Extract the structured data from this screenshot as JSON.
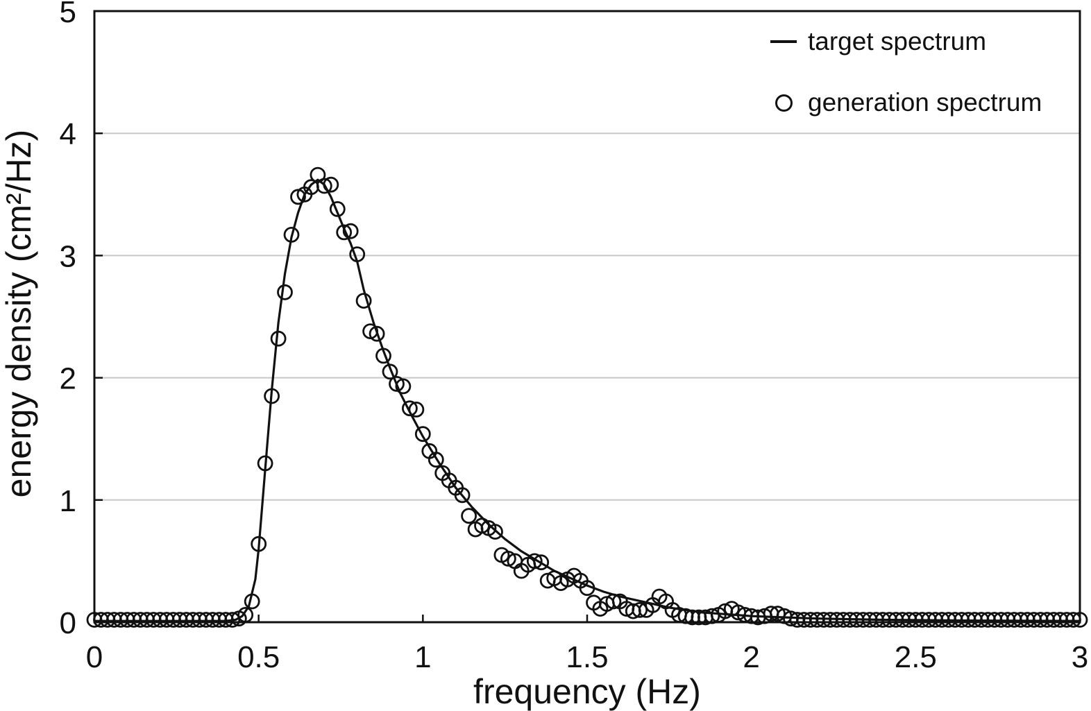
{
  "figure": {
    "background": "#ffffff"
  },
  "chart_data": {
    "type": "line",
    "title": "",
    "xlabel": "frequency (Hz)",
    "ylabel": "energy density (cm²/Hz)",
    "xlim": [
      0,
      3
    ],
    "ylim": [
      0,
      5
    ],
    "xticks": {
      "values": [
        0,
        0.5,
        1,
        1.5,
        2,
        2.5,
        3
      ],
      "labels": [
        "0",
        "0.5",
        "1",
        "1.5",
        "2",
        "2.5",
        "3"
      ]
    },
    "yticks": {
      "values": [
        0,
        1,
        2,
        3,
        4,
        5
      ],
      "labels": [
        "0",
        "1",
        "2",
        "3",
        "4",
        "5"
      ]
    },
    "grid": {
      "horizontal_at": [
        1,
        2,
        3,
        4
      ],
      "vertical": false,
      "color": "#c8c8c8"
    },
    "colors": {
      "axis": "#111111",
      "series": "#111111",
      "text": "#111111"
    },
    "legend": [
      {
        "label": "target spectrum",
        "marker": "line"
      },
      {
        "label": "generation spectrum",
        "marker": "open-circle"
      }
    ],
    "series": [
      {
        "name": "target spectrum",
        "style": "line",
        "points": [
          [
            0.0,
            0.01
          ],
          [
            0.3,
            0.01
          ],
          [
            0.4,
            0.01
          ],
          [
            0.43,
            0.02
          ],
          [
            0.45,
            0.05
          ],
          [
            0.47,
            0.13
          ],
          [
            0.49,
            0.35
          ],
          [
            0.5,
            0.6
          ],
          [
            0.52,
            1.25
          ],
          [
            0.54,
            1.9
          ],
          [
            0.56,
            2.45
          ],
          [
            0.58,
            2.85
          ],
          [
            0.6,
            3.15
          ],
          [
            0.62,
            3.35
          ],
          [
            0.64,
            3.5
          ],
          [
            0.66,
            3.58
          ],
          [
            0.68,
            3.62
          ],
          [
            0.7,
            3.58
          ],
          [
            0.72,
            3.48
          ],
          [
            0.74,
            3.35
          ],
          [
            0.76,
            3.22
          ],
          [
            0.78,
            3.1
          ],
          [
            0.8,
            2.95
          ],
          [
            0.82,
            2.72
          ],
          [
            0.85,
            2.45
          ],
          [
            0.88,
            2.22
          ],
          [
            0.9,
            2.08
          ],
          [
            0.93,
            1.88
          ],
          [
            0.96,
            1.72
          ],
          [
            1.0,
            1.52
          ],
          [
            1.05,
            1.3
          ],
          [
            1.1,
            1.1
          ],
          [
            1.15,
            0.94
          ],
          [
            1.2,
            0.8
          ],
          [
            1.25,
            0.68
          ],
          [
            1.3,
            0.58
          ],
          [
            1.35,
            0.5
          ],
          [
            1.4,
            0.42
          ],
          [
            1.45,
            0.36
          ],
          [
            1.5,
            0.3
          ],
          [
            1.55,
            0.25
          ],
          [
            1.6,
            0.21
          ],
          [
            1.65,
            0.18
          ],
          [
            1.7,
            0.15
          ],
          [
            1.75,
            0.12
          ],
          [
            1.8,
            0.1
          ],
          [
            1.85,
            0.08
          ],
          [
            1.9,
            0.07
          ],
          [
            1.95,
            0.06
          ],
          [
            2.0,
            0.05
          ],
          [
            2.1,
            0.04
          ],
          [
            2.2,
            0.03
          ],
          [
            2.4,
            0.02
          ],
          [
            2.6,
            0.015
          ],
          [
            2.8,
            0.012
          ],
          [
            3.0,
            0.01
          ]
        ]
      },
      {
        "name": "generation spectrum",
        "style": "scatter",
        "marker": "open-circle",
        "points": [
          [
            0.0,
            0.02
          ],
          [
            0.02,
            0.02
          ],
          [
            0.04,
            0.02
          ],
          [
            0.06,
            0.02
          ],
          [
            0.08,
            0.02
          ],
          [
            0.1,
            0.02
          ],
          [
            0.12,
            0.02
          ],
          [
            0.14,
            0.02
          ],
          [
            0.16,
            0.02
          ],
          [
            0.18,
            0.02
          ],
          [
            0.2,
            0.02
          ],
          [
            0.22,
            0.02
          ],
          [
            0.24,
            0.02
          ],
          [
            0.26,
            0.02
          ],
          [
            0.28,
            0.02
          ],
          [
            0.3,
            0.02
          ],
          [
            0.32,
            0.02
          ],
          [
            0.34,
            0.02
          ],
          [
            0.36,
            0.02
          ],
          [
            0.38,
            0.02
          ],
          [
            0.4,
            0.02
          ],
          [
            0.42,
            0.02
          ],
          [
            0.44,
            0.03
          ],
          [
            0.46,
            0.06
          ],
          [
            0.48,
            0.17
          ],
          [
            0.5,
            0.64
          ],
          [
            0.52,
            1.3
          ],
          [
            0.54,
            1.85
          ],
          [
            0.56,
            2.32
          ],
          [
            0.58,
            2.7
          ],
          [
            0.6,
            3.17
          ],
          [
            0.62,
            3.48
          ],
          [
            0.64,
            3.5
          ],
          [
            0.66,
            3.56
          ],
          [
            0.68,
            3.66
          ],
          [
            0.7,
            3.57
          ],
          [
            0.72,
            3.58
          ],
          [
            0.74,
            3.38
          ],
          [
            0.76,
            3.19
          ],
          [
            0.78,
            3.2
          ],
          [
            0.8,
            3.01
          ],
          [
            0.82,
            2.63
          ],
          [
            0.84,
            2.38
          ],
          [
            0.86,
            2.36
          ],
          [
            0.88,
            2.18
          ],
          [
            0.9,
            2.05
          ],
          [
            0.92,
            1.95
          ],
          [
            0.94,
            1.93
          ],
          [
            0.96,
            1.75
          ],
          [
            0.98,
            1.74
          ],
          [
            1.0,
            1.54
          ],
          [
            1.02,
            1.4
          ],
          [
            1.04,
            1.33
          ],
          [
            1.06,
            1.22
          ],
          [
            1.08,
            1.16
          ],
          [
            1.1,
            1.1
          ],
          [
            1.12,
            1.04
          ],
          [
            1.14,
            0.87
          ],
          [
            1.16,
            0.76
          ],
          [
            1.18,
            0.79
          ],
          [
            1.2,
            0.77
          ],
          [
            1.22,
            0.74
          ],
          [
            1.24,
            0.55
          ],
          [
            1.26,
            0.52
          ],
          [
            1.28,
            0.5
          ],
          [
            1.3,
            0.42
          ],
          [
            1.32,
            0.47
          ],
          [
            1.34,
            0.5
          ],
          [
            1.36,
            0.49
          ],
          [
            1.38,
            0.34
          ],
          [
            1.4,
            0.36
          ],
          [
            1.42,
            0.32
          ],
          [
            1.44,
            0.35
          ],
          [
            1.46,
            0.38
          ],
          [
            1.48,
            0.34
          ],
          [
            1.5,
            0.28
          ],
          [
            1.52,
            0.16
          ],
          [
            1.54,
            0.11
          ],
          [
            1.56,
            0.15
          ],
          [
            1.58,
            0.17
          ],
          [
            1.6,
            0.17
          ],
          [
            1.62,
            0.11
          ],
          [
            1.64,
            0.09
          ],
          [
            1.66,
            0.1
          ],
          [
            1.68,
            0.1
          ],
          [
            1.7,
            0.14
          ],
          [
            1.72,
            0.21
          ],
          [
            1.74,
            0.17
          ],
          [
            1.76,
            0.1
          ],
          [
            1.78,
            0.06
          ],
          [
            1.8,
            0.05
          ],
          [
            1.82,
            0.04
          ],
          [
            1.84,
            0.04
          ],
          [
            1.86,
            0.04
          ],
          [
            1.88,
            0.05
          ],
          [
            1.9,
            0.06
          ],
          [
            1.92,
            0.09
          ],
          [
            1.94,
            0.11
          ],
          [
            1.96,
            0.08
          ],
          [
            1.98,
            0.06
          ],
          [
            2.0,
            0.05
          ],
          [
            2.02,
            0.04
          ],
          [
            2.04,
            0.05
          ],
          [
            2.06,
            0.07
          ],
          [
            2.08,
            0.07
          ],
          [
            2.1,
            0.05
          ],
          [
            2.12,
            0.03
          ],
          [
            2.14,
            0.02
          ],
          [
            2.16,
            0.02
          ],
          [
            2.18,
            0.02
          ],
          [
            2.2,
            0.02
          ],
          [
            2.22,
            0.02
          ],
          [
            2.24,
            0.02
          ],
          [
            2.26,
            0.02
          ],
          [
            2.28,
            0.02
          ],
          [
            2.3,
            0.02
          ],
          [
            2.32,
            0.02
          ],
          [
            2.34,
            0.02
          ],
          [
            2.36,
            0.02
          ],
          [
            2.38,
            0.02
          ],
          [
            2.4,
            0.02
          ],
          [
            2.42,
            0.02
          ],
          [
            2.44,
            0.02
          ],
          [
            2.46,
            0.02
          ],
          [
            2.48,
            0.02
          ],
          [
            2.5,
            0.02
          ],
          [
            2.52,
            0.02
          ],
          [
            2.54,
            0.02
          ],
          [
            2.56,
            0.02
          ],
          [
            2.58,
            0.02
          ],
          [
            2.6,
            0.02
          ],
          [
            2.62,
            0.02
          ],
          [
            2.64,
            0.02
          ],
          [
            2.66,
            0.02
          ],
          [
            2.68,
            0.02
          ],
          [
            2.7,
            0.02
          ],
          [
            2.72,
            0.02
          ],
          [
            2.74,
            0.02
          ],
          [
            2.76,
            0.02
          ],
          [
            2.78,
            0.02
          ],
          [
            2.8,
            0.02
          ],
          [
            2.82,
            0.02
          ],
          [
            2.84,
            0.02
          ],
          [
            2.86,
            0.02
          ],
          [
            2.88,
            0.02
          ],
          [
            2.9,
            0.02
          ],
          [
            2.92,
            0.02
          ],
          [
            2.94,
            0.02
          ],
          [
            2.96,
            0.02
          ],
          [
            2.98,
            0.02
          ],
          [
            3.0,
            0.02
          ]
        ]
      }
    ]
  }
}
